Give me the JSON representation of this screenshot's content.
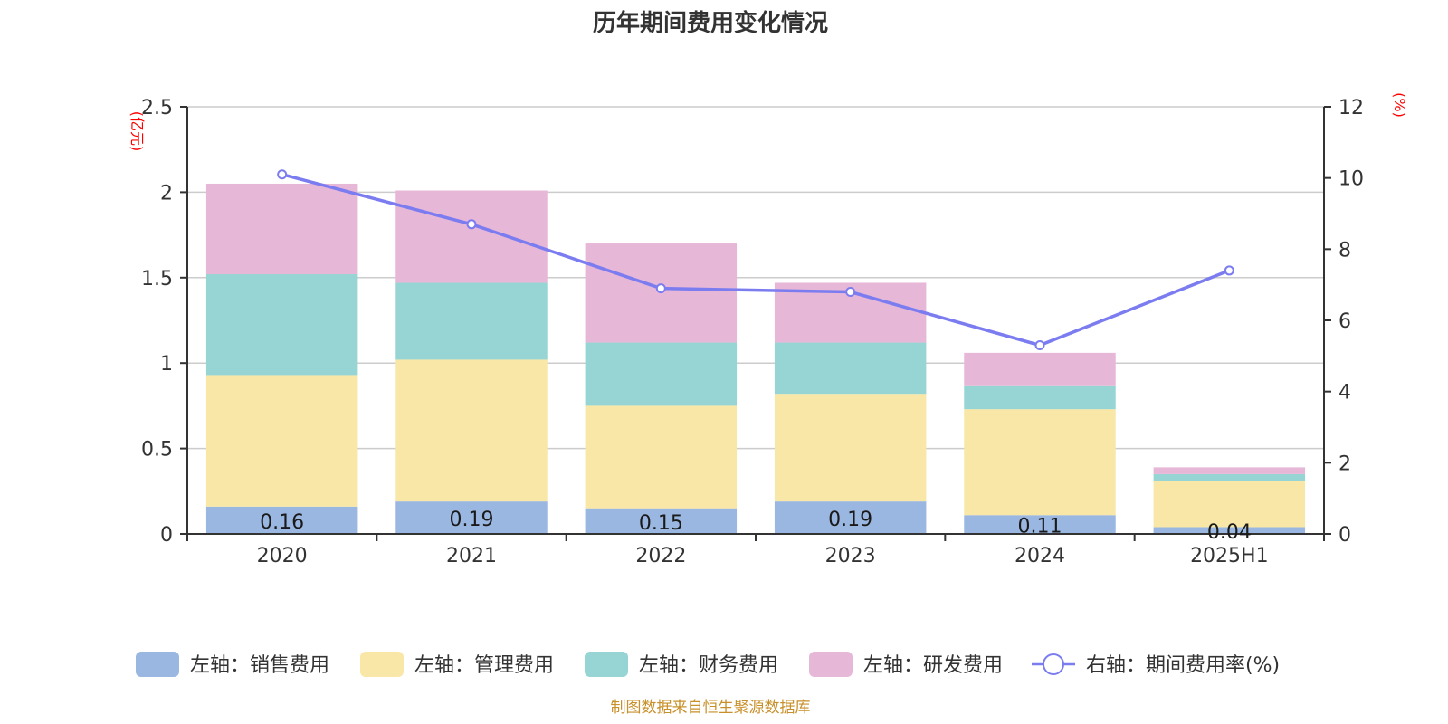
{
  "chart_data": {
    "type": "bar",
    "title": "历年期间费用变化情况",
    "categories": [
      "2020",
      "2021",
      "2022",
      "2023",
      "2024",
      "2025H1"
    ],
    "series": [
      {
        "name": "左轴：销售费用",
        "axis": "left",
        "color": "#9ab7e1",
        "values": [
          0.16,
          0.19,
          0.15,
          0.19,
          0.11,
          0.04
        ],
        "show_labels": true
      },
      {
        "name": "左轴：管理费用",
        "axis": "left",
        "color": "#f8e7a6",
        "values": [
          0.77,
          0.83,
          0.6,
          0.63,
          0.62,
          0.27
        ],
        "show_labels": false
      },
      {
        "name": "左轴：财务费用",
        "axis": "left",
        "color": "#97d4d4",
        "values": [
          0.59,
          0.45,
          0.37,
          0.3,
          0.14,
          0.04
        ],
        "show_labels": false
      },
      {
        "name": "左轴：研发费用",
        "axis": "left",
        "color": "#e7b7d8",
        "values": [
          0.53,
          0.54,
          0.58,
          0.35,
          0.19,
          0.04
        ],
        "show_labels": false
      }
    ],
    "line": {
      "name": "右轴：期间费用率(%)",
      "axis": "right",
      "color": "#7b7cf0",
      "values": [
        10.1,
        8.7,
        6.9,
        6.8,
        5.3,
        7.4
      ]
    },
    "left_axis": {
      "unit": "(亿元)",
      "range": [
        0,
        2.5
      ],
      "ticks": [
        0,
        0.5,
        1,
        1.5,
        2,
        2.5
      ],
      "tick_labels": [
        "0",
        "0.5",
        "1",
        "1.5",
        "2",
        "2.5"
      ]
    },
    "right_axis": {
      "unit": "(%)",
      "range": [
        0,
        12
      ],
      "ticks": [
        0,
        2,
        4,
        6,
        8,
        10,
        12
      ],
      "tick_labels": [
        "0",
        "2",
        "4",
        "6",
        "8",
        "10",
        "12"
      ]
    },
    "grid": true,
    "legend_position": "bottom",
    "source": "制图数据来自恒生聚源数据库"
  }
}
